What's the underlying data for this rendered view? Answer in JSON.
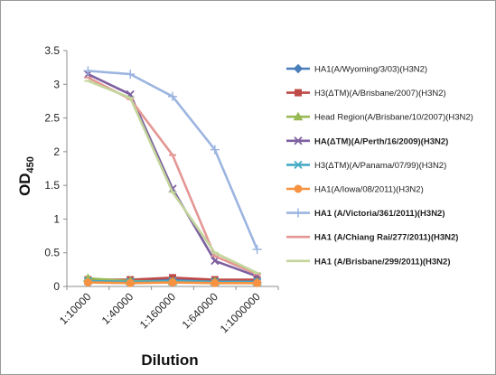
{
  "chart_data": {
    "type": "line",
    "title": "",
    "xlabel": "Dilution",
    "ylabel": "OD",
    "ylabel_subscript": "450",
    "ylim": [
      0,
      3.5
    ],
    "yticks": [
      "0",
      "0.5",
      "1",
      "1.5",
      "2",
      "2.5",
      "3",
      "3.5"
    ],
    "grid": false,
    "legend_position": "right",
    "categories": [
      "1:10000",
      "1:40000",
      "1:160000",
      "1:640000",
      "1:1000000"
    ],
    "series": [
      {
        "name": "HA1(A/Wyoming/3/03)(H3N2)",
        "color": "#4a7ebb",
        "marker": "diamond",
        "bold": false,
        "values": [
          0.08,
          0.07,
          0.1,
          0.07,
          0.06
        ]
      },
      {
        "name": "H3(ΔTM)(A/Brisbane/2007)(H3N2)",
        "color": "#be4b48",
        "marker": "square",
        "bold": false,
        "values": [
          0.1,
          0.1,
          0.13,
          0.1,
          0.1
        ]
      },
      {
        "name": "Head Region(A/Brisbane/10/2007)(H3N2)",
        "color": "#98b954",
        "marker": "triangle",
        "bold": false,
        "values": [
          0.12,
          0.08,
          0.07,
          0.07,
          0.07
        ]
      },
      {
        "name": "HA(ΔTM)(A/Perth/16/2009)(H3N2)",
        "color": "#7d60a0",
        "marker": "x",
        "bold": true,
        "values": [
          3.15,
          2.85,
          1.45,
          0.38,
          0.15
        ]
      },
      {
        "name": "H3(ΔTM)(A/Panama/07/99)(H3N2)",
        "color": "#46aac4",
        "marker": "x",
        "bold": false,
        "values": [
          0.08,
          0.07,
          0.08,
          0.07,
          0.07
        ]
      },
      {
        "name": "HA1(A/Iowa/08/2011)(H3N2)",
        "color": "#f69240",
        "marker": "circle",
        "bold": false,
        "values": [
          0.06,
          0.05,
          0.06,
          0.05,
          0.05
        ]
      },
      {
        "name": "HA1 (A/Victoria/361/2011)(H3N2)",
        "color": "#9cb5e0",
        "marker": "plus",
        "bold": true,
        "values": [
          3.2,
          3.15,
          2.82,
          2.03,
          0.55
        ]
      },
      {
        "name": "HA1 (A/Chiang Rai/277/2011)(H3N2)",
        "color": "#e39794",
        "marker": "dash",
        "bold": true,
        "values": [
          3.1,
          2.78,
          1.95,
          0.45,
          0.18
        ]
      },
      {
        "name": "HA1 (A/Brisbane/299/2011)(H3N2)",
        "color": "#c3d69b",
        "marker": "dash",
        "bold": true,
        "values": [
          3.05,
          2.8,
          1.4,
          0.5,
          0.2
        ]
      }
    ]
  }
}
